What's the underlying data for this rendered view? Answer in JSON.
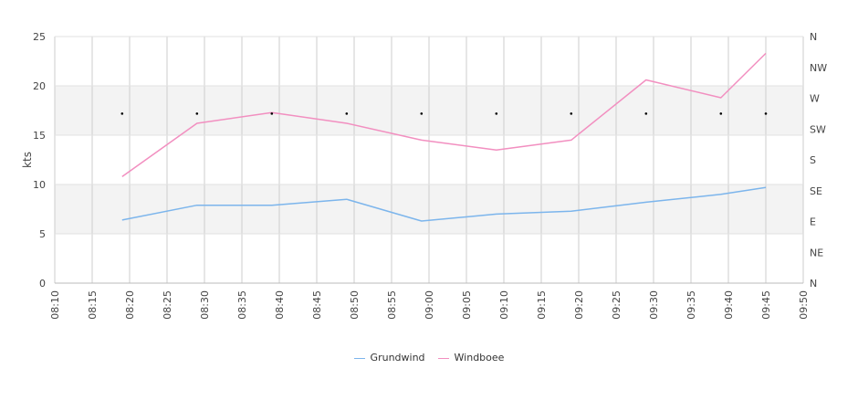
{
  "chart_data": {
    "type": "line",
    "ylabel": "kts",
    "ylim": [
      0,
      25
    ],
    "y_ticks": [
      0,
      5,
      10,
      15,
      20,
      25
    ],
    "x_ticks": [
      "08:10",
      "08:15",
      "08:20",
      "08:25",
      "08:30",
      "08:35",
      "08:40",
      "08:45",
      "08:50",
      "08:55",
      "09:00",
      "09:05",
      "09:10",
      "09:15",
      "09:20",
      "09:25",
      "09:30",
      "09:35",
      "09:40",
      "09:45",
      "09:50"
    ],
    "xlim": [
      "08:10",
      "09:50"
    ],
    "right_axis_labels": [
      "N",
      "NE",
      "E",
      "SE",
      "S",
      "SW",
      "W",
      "NW",
      "N"
    ],
    "grid": true,
    "legend_position": "bottom",
    "series": [
      {
        "name": "Grundwind",
        "color": "#7cb5ec",
        "x": [
          "08:19",
          "08:29",
          "08:39",
          "08:49",
          "08:59",
          "09:09",
          "09:19",
          "09:29",
          "09:39",
          "09:45"
        ],
        "values": [
          6.4,
          7.9,
          7.9,
          8.5,
          6.3,
          7.0,
          7.3,
          8.2,
          9.0,
          9.7
        ]
      },
      {
        "name": "Windboee",
        "color": "#f28fc0",
        "x": [
          "08:19",
          "08:29",
          "08:39",
          "08:49",
          "08:59",
          "09:09",
          "09:19",
          "09:29",
          "09:39",
          "09:45"
        ],
        "values": [
          10.8,
          16.2,
          17.3,
          16.2,
          14.5,
          13.5,
          14.5,
          20.6,
          18.8,
          23.3
        ]
      }
    ],
    "direction_markers": {
      "x": [
        "08:19",
        "08:29",
        "08:39",
        "08:49",
        "08:59",
        "09:09",
        "09:19",
        "09:29",
        "09:39",
        "09:45"
      ],
      "direction": [
        "WSW",
        "WSW",
        "WSW",
        "WSW",
        "WSW",
        "WSW",
        "WSW",
        "WSW",
        "WSW",
        "WSW"
      ]
    }
  }
}
